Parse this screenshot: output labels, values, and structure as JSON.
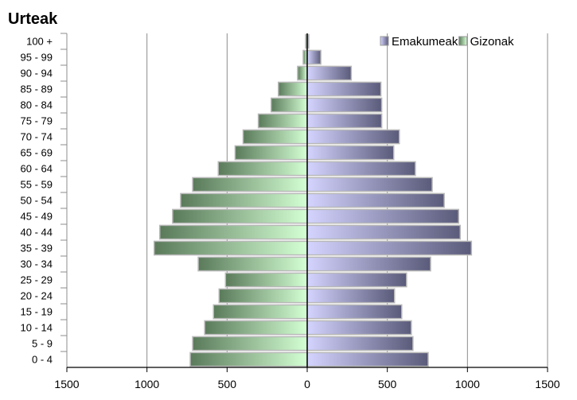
{
  "chart_data": {
    "type": "bar",
    "orientation": "horizontal",
    "layout": "population-pyramid",
    "title": "Urteak",
    "xlabel": "",
    "ylabel": "",
    "xlim": [
      -1500,
      1500
    ],
    "xticks": [
      -1500,
      -1000,
      -500,
      0,
      500,
      1000,
      1500
    ],
    "xtick_labels": [
      "1500",
      "1000",
      "500",
      "0",
      "500",
      "1000",
      "1500"
    ],
    "grid": true,
    "legend_position": "top-right",
    "categories": [
      "0 - 4",
      "5 - 9",
      "10 - 14",
      "15 - 19",
      "20 - 24",
      "25 - 29",
      "30 - 34",
      "35 - 39",
      "40 - 44",
      "45 - 49",
      "50 - 54",
      "55 - 59",
      "60 - 64",
      "65 - 69",
      "70 - 74",
      "75 - 79",
      "80 - 84",
      "85 - 89",
      "90 - 94",
      "95 - 99",
      "100 +"
    ],
    "series": [
      {
        "name": "Emakumeak",
        "side": "right",
        "color_light": "#d4d4ff",
        "color_dark": "#5a5a7a",
        "values": [
          755,
          660,
          650,
          590,
          545,
          620,
          770,
          1025,
          955,
          945,
          855,
          780,
          675,
          540,
          575,
          465,
          465,
          460,
          275,
          85,
          10
        ]
      },
      {
        "name": "Gizonak",
        "side": "left",
        "color_light": "#d4ffd4",
        "color_dark": "#5a7a5a",
        "values": [
          730,
          715,
          640,
          585,
          550,
          510,
          680,
          955,
          920,
          840,
          790,
          715,
          555,
          450,
          400,
          305,
          225,
          180,
          60,
          25,
          10
        ]
      }
    ]
  }
}
